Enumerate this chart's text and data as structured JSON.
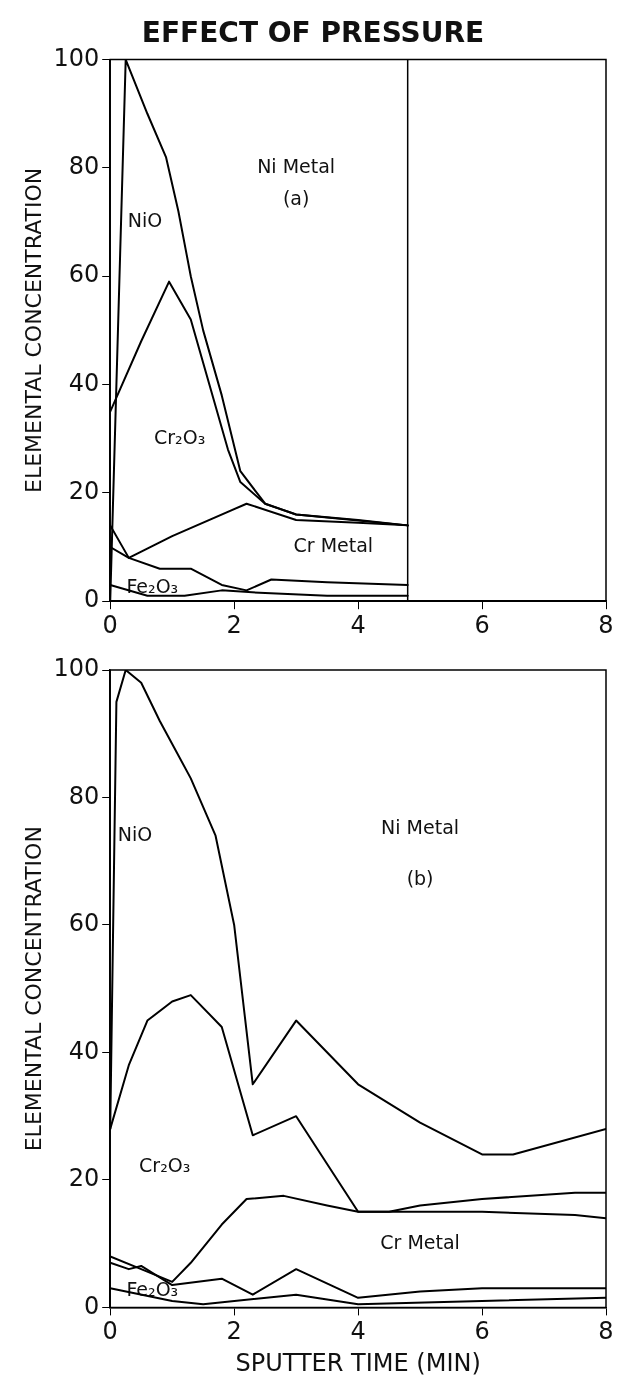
{
  "chart_data": [
    {
      "type": "line",
      "title": "EFFECT OF PRESSURE",
      "ylabel": "ELEMENTAL CONCENTRATION",
      "xlim": [
        0,
        8
      ],
      "ylim": [
        0,
        100
      ],
      "xticks": [
        0,
        2,
        4,
        6,
        8
      ],
      "yticks": [
        0,
        20,
        40,
        60,
        80,
        100
      ],
      "grid": false,
      "legend": false,
      "marker": "none",
      "line_style": "solid",
      "series": [
        {
          "color": "#000000",
          "x": [
            0,
            0.25,
            0.6,
            0.9,
            1.1,
            1.3,
            1.5,
            1.8,
            2.1,
            2.5,
            3,
            4,
            4.8
          ],
          "values": [
            0,
            100,
            90,
            82,
            72,
            60,
            50,
            38,
            24,
            18,
            16,
            15,
            14
          ]
        },
        {
          "color": "#000000",
          "x": [
            0,
            0.5,
            0.95,
            1.3,
            1.6,
            1.9,
            2.1,
            2.5,
            3,
            4.8
          ],
          "values": [
            35,
            48,
            59,
            52,
            40,
            28,
            22,
            18,
            16,
            14
          ]
        },
        {
          "color": "#000000",
          "x": [
            0,
            0.3,
            1,
            2.2,
            3,
            4,
            4.8
          ],
          "values": [
            14,
            8,
            12,
            18,
            15,
            14.5,
            14
          ]
        },
        {
          "color": "#000000",
          "x": [
            0,
            0.3,
            0.8,
            1.3,
            1.8,
            2.2,
            2.6,
            3.5,
            4.8
          ],
          "values": [
            10,
            8,
            6,
            6,
            3,
            2,
            4,
            3.5,
            3
          ]
        },
        {
          "color": "#000000",
          "x": [
            0,
            0.6,
            1.2,
            1.8,
            2.5,
            3.5,
            4.8
          ],
          "values": [
            3,
            1,
            1,
            2,
            1.5,
            1,
            1
          ]
        }
      ],
      "ref_lines": [
        {
          "axis": "x",
          "value": 4.8,
          "color": "#000000"
        }
      ],
      "annotations": [
        "Ni Metal",
        "(a)",
        "NiO",
        "Cr₂O₃",
        "Cr Metal",
        "Fe₂O₃"
      ]
    },
    {
      "type": "line",
      "xlabel": "SPUTTER TIME (MIN)",
      "ylabel": "ELEMENTAL CONCENTRATION",
      "xlim": [
        0,
        8
      ],
      "ylim": [
        0,
        100
      ],
      "xticks": [
        0,
        2,
        4,
        6,
        8
      ],
      "yticks": [
        0,
        20,
        40,
        60,
        80,
        100
      ],
      "grid": false,
      "legend": false,
      "marker": "none",
      "line_style": "solid",
      "series": [
        {
          "color": "#000000",
          "x": [
            0,
            0.1,
            0.25,
            0.5,
            0.8,
            1.3,
            1.7,
            2,
            2.3,
            3,
            4,
            5,
            6,
            6.5,
            8
          ],
          "values": [
            28,
            95,
            100,
            98,
            92,
            83,
            74,
            60,
            35,
            45,
            35,
            29,
            24,
            24,
            28
          ]
        },
        {
          "color": "#000000",
          "x": [
            0,
            0.3,
            0.6,
            1,
            1.3,
            1.8,
            2.3,
            3,
            4,
            4.5,
            5,
            6,
            7.5,
            8
          ],
          "values": [
            28,
            38,
            45,
            48,
            49,
            44,
            27,
            30,
            15,
            15,
            16,
            17,
            18,
            18
          ]
        },
        {
          "color": "#000000",
          "x": [
            0,
            0.5,
            1,
            1.3,
            1.8,
            2.2,
            2.8,
            3.5,
            4,
            6,
            7.5,
            8
          ],
          "values": [
            8,
            6,
            4,
            7,
            13,
            17,
            17.5,
            16,
            15,
            15,
            14.5,
            14
          ]
        },
        {
          "color": "#000000",
          "x": [
            0,
            0.3,
            0.5,
            1,
            1.8,
            2.3,
            3,
            4,
            5,
            6,
            8
          ],
          "values": [
            7,
            6,
            6.5,
            3.5,
            4.5,
            2,
            6,
            1.5,
            2.5,
            3,
            3
          ]
        },
        {
          "color": "#000000",
          "x": [
            0,
            1,
            1.5,
            3,
            4,
            6,
            8
          ],
          "values": [
            3,
            1,
            0.5,
            2,
            0.5,
            1,
            1.5
          ]
        }
      ],
      "annotations": [
        "Ni Metal",
        "(b)",
        "NiO",
        "Cr₂O₃",
        "Cr Metal",
        "Fe₂O₃"
      ]
    }
  ]
}
